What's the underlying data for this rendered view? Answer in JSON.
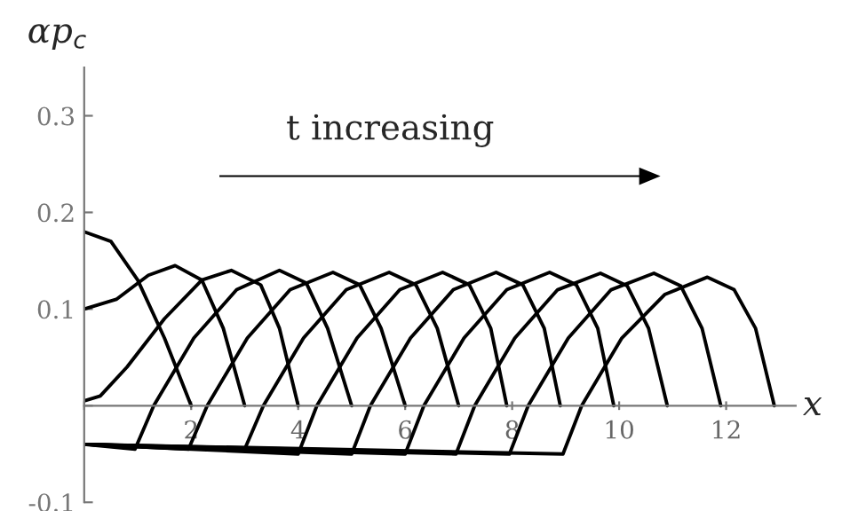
{
  "chart_data": {
    "type": "line",
    "xlabel": "x",
    "ylabel": "αp$_{c}$",
    "annotations": [
      "t increasing"
    ],
    "xlim": [
      0,
      13.3
    ],
    "ylim": [
      -0.1,
      0.35
    ],
    "xticks": [
      {
        "value": 0,
        "label": null
      },
      2,
      4,
      6,
      8,
      10,
      12
    ],
    "yticks": [
      -0.1,
      {
        "value": 0,
        "label": null
      },
      0.1,
      0.2,
      0.3
    ],
    "grid": false,
    "legend": false,
    "marker": "none",
    "line_style": "solid",
    "series": [
      {
        "color": "#000000",
        "x": [
          0,
          0.5,
          1,
          1.5,
          2.0
        ],
        "values": [
          0.18,
          0.17,
          0.13,
          0.07,
          0
        ]
      },
      {
        "color": "#000000",
        "x": [
          0,
          0.6,
          1.2,
          1.7,
          2.2,
          2.6,
          3.0
        ],
        "values": [
          0.1,
          0.11,
          0.135,
          0.145,
          0.13,
          0.08,
          0
        ]
      },
      {
        "color": "#000000",
        "x": [
          0,
          0.3,
          0.8,
          1.5,
          2.2,
          2.75,
          3.3,
          3.65,
          4.0
        ],
        "values": [
          0.005,
          0.01,
          0.04,
          0.09,
          0.13,
          0.14,
          0.125,
          0.08,
          0
        ]
      },
      {
        "color": "#000000",
        "x": [
          0,
          0.95,
          1.3,
          2.05,
          2.85,
          3.65,
          4.15,
          4.55,
          5.0
        ],
        "values": [
          -0.04,
          -0.045,
          0,
          0.07,
          0.12,
          0.14,
          0.127,
          0.08,
          0
        ]
      },
      {
        "color": "#000000",
        "x": [
          0,
          1.95,
          2.3,
          3.05,
          3.85,
          4.65,
          5.15,
          5.55,
          6.0
        ],
        "values": [
          -0.04,
          -0.045,
          0,
          0.07,
          0.12,
          0.138,
          0.125,
          0.08,
          0
        ]
      },
      {
        "color": "#000000",
        "x": [
          0,
          3.0,
          3.35,
          4.1,
          4.9,
          5.7,
          6.2,
          6.6,
          7.0
        ],
        "values": [
          -0.04,
          -0.045,
          0,
          0.07,
          0.12,
          0.138,
          0.125,
          0.08,
          0
        ]
      },
      {
        "color": "#000000",
        "x": [
          0,
          4.0,
          4.35,
          5.1,
          5.9,
          6.7,
          7.2,
          7.6,
          7.9
        ],
        "values": [
          -0.04,
          -0.05,
          0,
          0.07,
          0.12,
          0.138,
          0.125,
          0.08,
          0
        ]
      },
      {
        "color": "#000000",
        "x": [
          0,
          5.0,
          5.35,
          6.1,
          6.9,
          7.7,
          8.2,
          8.6,
          8.9
        ],
        "values": [
          -0.04,
          -0.05,
          0,
          0.07,
          0.12,
          0.138,
          0.125,
          0.08,
          0
        ]
      },
      {
        "color": "#000000",
        "x": [
          0,
          6.0,
          6.35,
          7.1,
          7.9,
          8.7,
          9.2,
          9.6,
          9.9
        ],
        "values": [
          -0.04,
          -0.05,
          0,
          0.07,
          0.12,
          0.138,
          0.125,
          0.08,
          0
        ]
      },
      {
        "color": "#000000",
        "x": [
          0,
          6.95,
          7.3,
          8.05,
          8.85,
          9.65,
          10.15,
          10.55,
          10.9
        ],
        "values": [
          -0.04,
          -0.05,
          0,
          0.07,
          0.12,
          0.137,
          0.124,
          0.08,
          0
        ]
      },
      {
        "color": "#000000",
        "x": [
          0,
          7.95,
          8.3,
          9.05,
          9.85,
          10.65,
          11.15,
          11.55,
          11.9
        ],
        "values": [
          -0.04,
          -0.05,
          0,
          0.07,
          0.12,
          0.137,
          0.124,
          0.08,
          0
        ]
      },
      {
        "color": "#000000",
        "x": [
          0,
          8.95,
          9.3,
          10.05,
          10.85,
          11.65,
          12.15,
          12.55,
          12.9
        ],
        "values": [
          -0.04,
          -0.05,
          0,
          0.07,
          0.115,
          0.133,
          0.12,
          0.08,
          0
        ]
      }
    ]
  }
}
